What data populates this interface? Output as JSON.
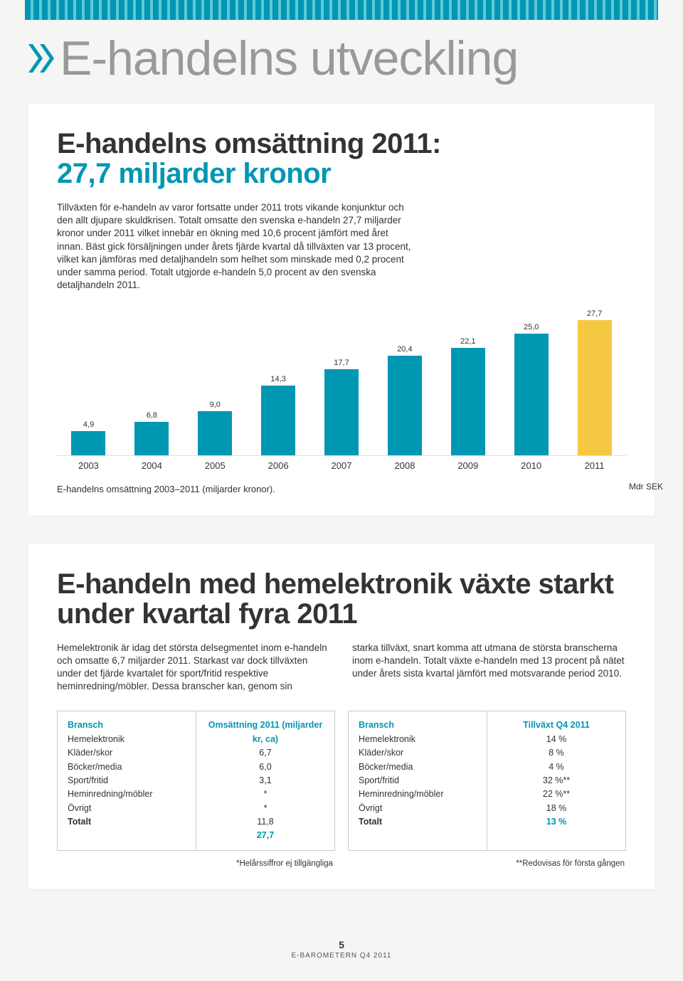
{
  "page_title": "E-handelns utveckling",
  "marker_color": "#0097b2",
  "section1": {
    "heading_line1": "E-handelns omsättning 2011:",
    "heading_line2": "27,7 miljarder kronor",
    "heading_accent_color": "#0097b2",
    "body": "Tillväxten för e-handeln av varor fortsatte under 2011 trots vikande konjunktur och den allt djupare skuldkrisen. Totalt omsatte den svenska e-handeln 27,7 miljarder kronor under 2011 vilket innebär en ökning med 10,6 procent jämfört med året innan. Bäst gick försäljningen under årets fjärde kvartal då tillväxten var 13 procent, vilket kan jämföras med detaljhandeln som helhet som minskade med 0,2 procent under samma period. Totalt utgjorde e-handeln 5,0 procent av den svenska detaljhandeln 2011.",
    "chart": {
      "type": "bar",
      "axis_label": "Mdr SEK",
      "caption": "E-handelns omsättning 2003–2011 (miljarder kronor).",
      "ymax": 30,
      "bars": [
        {
          "label": "2003",
          "value": 4.9,
          "display": "4,9",
          "color": "#0097b2"
        },
        {
          "label": "2004",
          "value": 6.8,
          "display": "6,8",
          "color": "#0097b2"
        },
        {
          "label": "2005",
          "value": 9.0,
          "display": "9,0",
          "color": "#0097b2"
        },
        {
          "label": "2006",
          "value": 14.3,
          "display": "14,3",
          "color": "#0097b2"
        },
        {
          "label": "2007",
          "value": 17.7,
          "display": "17,7",
          "color": "#0097b2"
        },
        {
          "label": "2008",
          "value": 20.4,
          "display": "20,4",
          "color": "#0097b2"
        },
        {
          "label": "2009",
          "value": 22.1,
          "display": "22,1",
          "color": "#0097b2"
        },
        {
          "label": "2010",
          "value": 25.0,
          "display": "25,0",
          "color": "#0097b2"
        },
        {
          "label": "2011",
          "value": 27.7,
          "display": "27,7",
          "color": "#f5c842"
        }
      ]
    }
  },
  "section2": {
    "heading": "E-handeln med hemelektronik växte starkt under kvartal fyra 2011",
    "col1": "Hemelektronik är idag det största delsegmentet inom e-handeln och omsatte 6,7 miljarder 2011. Starkast var dock tillväxten under det fjärde kvartalet för sport/fritid respektive heminredning/möbler. Dessa branscher kan, genom sin",
    "col2": "starka tillväxt, snart komma att utmana de största branscherna inom e-handeln. Totalt växte e-handeln med 13 procent på nätet under årets sista kvartal jämfört med motsvarande period 2010.",
    "table1": {
      "head_left": "Bransch",
      "head_right": "Omsättning 2011 (miljarder kr, ca)",
      "rows": [
        {
          "l": "Hemelektronik",
          "r": "6,7"
        },
        {
          "l": "Kläder/skor",
          "r": "6,0"
        },
        {
          "l": "Böcker/media",
          "r": "3,1"
        },
        {
          "l": "Sport/fritid",
          "r": "*"
        },
        {
          "l": "Heminredning/möbler",
          "r": "*"
        },
        {
          "l": "Övrigt",
          "r": "11,8"
        }
      ],
      "total_l": "Totalt",
      "total_r": "27,7"
    },
    "table2": {
      "head_left": "Bransch",
      "head_right": "Tillväxt Q4 2011",
      "rows": [
        {
          "l": "Hemelektronik",
          "r": "14 %"
        },
        {
          "l": "Kläder/skor",
          "r": "8 %"
        },
        {
          "l": "Böcker/media",
          "r": "4 %"
        },
        {
          "l": "Sport/fritid",
          "r": "32 %**"
        },
        {
          "l": "Heminredning/möbler",
          "r": "22 %**"
        },
        {
          "l": "Övrigt",
          "r": "18 %"
        }
      ],
      "total_l": "Totalt",
      "total_r": "13 %"
    },
    "footnote1": "*Helårssiffror ej tillgängliga",
    "footnote2": "**Redovisas för första gången"
  },
  "footer": {
    "page_num": "5",
    "publication": "E-BAROMETERN Q4 2011"
  }
}
